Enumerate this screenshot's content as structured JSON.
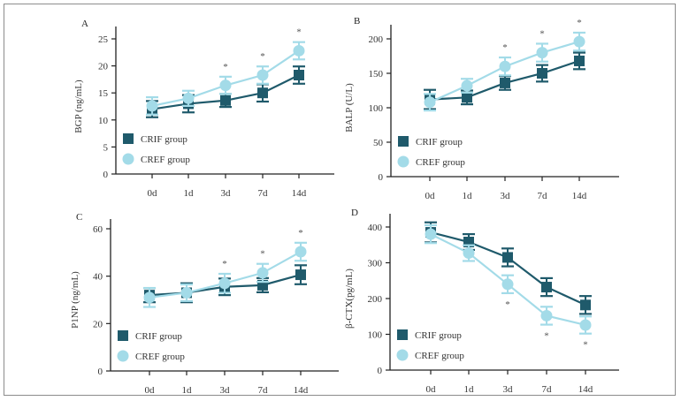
{
  "colors": {
    "crif": "#1f5a6b",
    "cref": "#a3dbe8",
    "axis": "#222222"
  },
  "chart_data": [
    {
      "type": "line",
      "panel": "A",
      "title": "",
      "xlabel": "",
      "ylabel": "BGP (ng/mL)",
      "categories": [
        "0d",
        "1d",
        "3d",
        "7d",
        "14d"
      ],
      "ylim": [
        0,
        27
      ],
      "yticks": [
        0,
        5,
        10,
        15,
        20,
        25
      ],
      "legend": "bottom-left",
      "series": [
        {
          "name": "CRIF group",
          "marker": "square",
          "values": [
            12.0,
            13.0,
            13.6,
            15.0,
            18.3
          ],
          "errors": [
            1.5,
            1.6,
            1.2,
            1.6,
            1.6
          ]
        },
        {
          "name": "CREF group",
          "marker": "circle",
          "values": [
            12.6,
            14.0,
            16.4,
            18.3,
            22.8
          ],
          "errors": [
            1.6,
            1.4,
            1.6,
            1.6,
            1.6
          ]
        }
      ],
      "significance": [
        "",
        "",
        "*",
        "*",
        "*"
      ],
      "significance_position": "above"
    },
    {
      "type": "line",
      "panel": "B",
      "title": "",
      "xlabel": "",
      "ylabel": "BALP (U/L)",
      "categories": [
        "0d",
        "1d",
        "3d",
        "7d",
        "14d"
      ],
      "ylim": [
        0,
        220
      ],
      "yticks": [
        0,
        50,
        100,
        150,
        200
      ],
      "legend": "bottom-left",
      "series": [
        {
          "name": "CRIF group",
          "marker": "square",
          "values": [
            112,
            115,
            136,
            150,
            168
          ],
          "errors": [
            14,
            10,
            10,
            12,
            12
          ]
        },
        {
          "name": "CREF group",
          "marker": "circle",
          "values": [
            108,
            132,
            160,
            180,
            196
          ],
          "errors": [
            12,
            10,
            13,
            13,
            13
          ]
        }
      ],
      "significance": [
        "",
        "",
        "*",
        "*",
        "*"
      ],
      "significance_position": "above"
    },
    {
      "type": "line",
      "panel": "C",
      "title": "",
      "xlabel": "",
      "ylabel": "P1NP (ng/mL)",
      "categories": [
        "0d",
        "1d",
        "3d",
        "7d",
        "14d"
      ],
      "ylim": [
        0,
        64
      ],
      "yticks": [
        0,
        20,
        40,
        60
      ],
      "legend": "bottom-left",
      "series": [
        {
          "name": "CRIF group",
          "marker": "square",
          "values": [
            32.0,
            33.0,
            35.5,
            36.2,
            40.6
          ],
          "errors": [
            3.0,
            4.0,
            3.5,
            3.0,
            4.0
          ]
        },
        {
          "name": "CREF group",
          "marker": "circle",
          "values": [
            31.0,
            33.0,
            37.0,
            41.4,
            50.3
          ],
          "errors": [
            4.0,
            3.5,
            4.0,
            3.8,
            3.8
          ]
        }
      ],
      "significance": [
        "",
        "",
        "*",
        "*",
        "*"
      ],
      "significance_position": "above"
    },
    {
      "type": "line",
      "panel": "D",
      "title": "",
      "xlabel": "",
      "ylabel": "β-CTX(pg/mL)",
      "categories": [
        "0d",
        "1d",
        "3d",
        "7d",
        "14d"
      ],
      "ylim": [
        0,
        430
      ],
      "yticks": [
        0,
        100,
        200,
        300,
        400
      ],
      "legend": "bottom-left",
      "series": [
        {
          "name": "CRIF group",
          "marker": "square",
          "values": [
            385,
            358,
            315,
            232,
            182
          ],
          "errors": [
            28,
            22,
            25,
            25,
            25
          ]
        },
        {
          "name": "CREF group",
          "marker": "circle",
          "values": [
            380,
            327,
            240,
            152,
            126
          ],
          "errors": [
            25,
            22,
            25,
            25,
            24
          ]
        }
      ],
      "significance": [
        "",
        "",
        "*",
        "*",
        "*"
      ],
      "significance_position": "below"
    }
  ]
}
